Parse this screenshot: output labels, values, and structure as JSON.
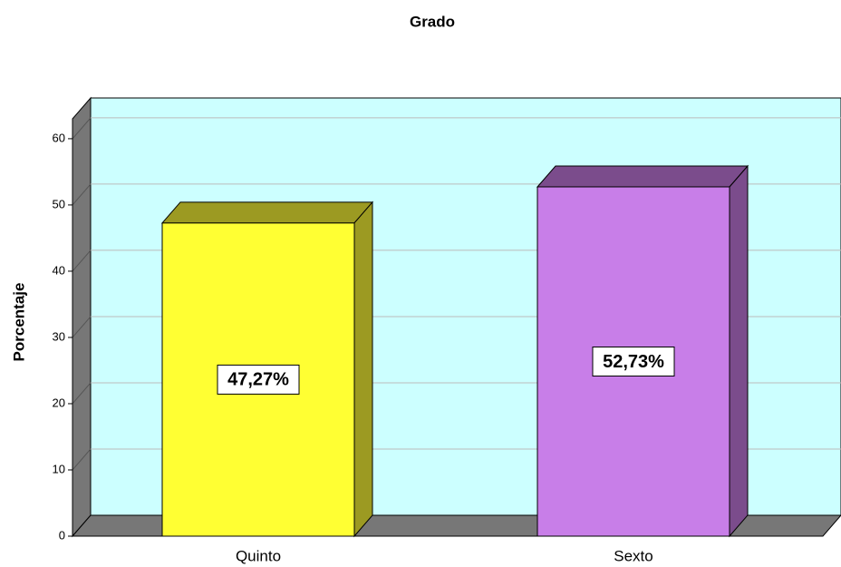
{
  "chart_data": {
    "type": "bar3d",
    "title": "Grado",
    "y_label": "Porcentaje",
    "categories": [
      "Quinto",
      "Sexto"
    ],
    "values": [
      47.27,
      52.73
    ],
    "value_labels": [
      "47,27%",
      "52,73%"
    ],
    "colors": [
      "#ffff33",
      "#c87ee8"
    ],
    "side_colors": [
      "#9c9a22",
      "#7b4c8c"
    ],
    "ylim": [
      0,
      63
    ],
    "yticks": [
      0,
      10,
      20,
      30,
      40,
      50,
      60
    ],
    "grid": true
  }
}
